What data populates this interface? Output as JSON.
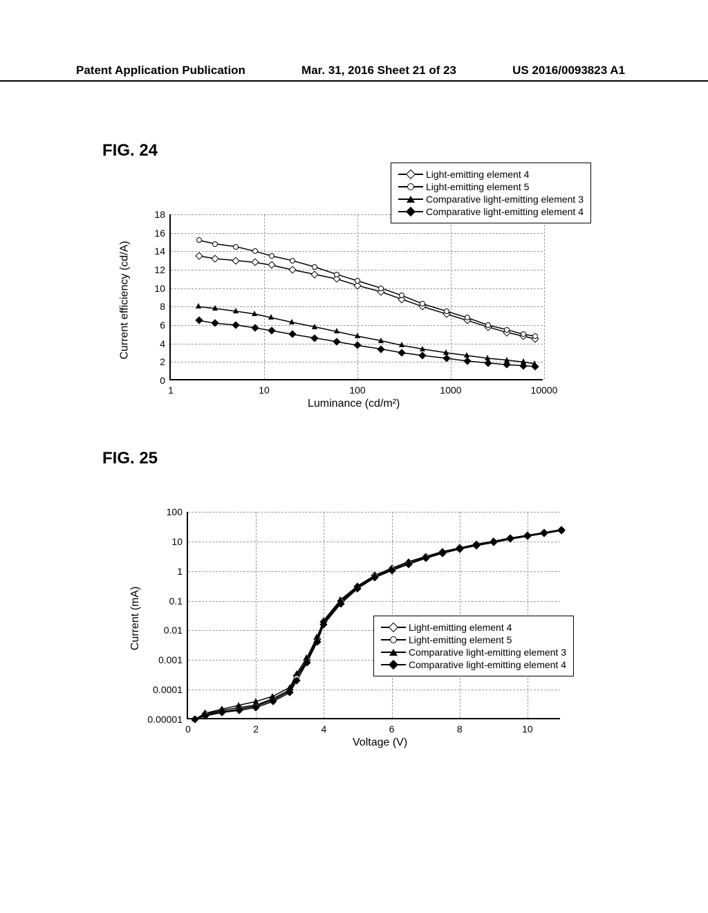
{
  "header": {
    "left": "Patent Application Publication",
    "center": "Mar. 31, 2016  Sheet 21 of 23",
    "right": "US 2016/0093823 A1"
  },
  "fig24": {
    "label": "FIG. 24",
    "type": "line",
    "xlabel": "Luminance (cd/m²)",
    "ylabel": "Current efficiency (cd/A)",
    "xscale": "log",
    "xlim": [
      1,
      10000
    ],
    "xticks": [
      1,
      10,
      100,
      1000,
      10000
    ],
    "ylim": [
      0,
      18
    ],
    "yticks": [
      0,
      2,
      4,
      6,
      8,
      10,
      12,
      14,
      16,
      18
    ],
    "grid_color": "#999999",
    "background_color": "#ffffff",
    "legend_position": "top-right",
    "series": [
      {
        "label": "Light-emitting element 4",
        "marker": "diamond-open",
        "color": "#000000",
        "x": [
          2,
          3,
          5,
          8,
          12,
          20,
          35,
          60,
          100,
          180,
          300,
          500,
          900,
          1500,
          2500,
          4000,
          6000,
          8000
        ],
        "y": [
          13.5,
          13.2,
          13.0,
          12.8,
          12.5,
          12.0,
          11.5,
          11.0,
          10.3,
          9.6,
          8.8,
          8.0,
          7.2,
          6.5,
          5.8,
          5.2,
          4.8,
          4.5
        ]
      },
      {
        "label": "Light-emitting element 5",
        "marker": "circle-open",
        "color": "#000000",
        "x": [
          2,
          3,
          5,
          8,
          12,
          20,
          35,
          60,
          100,
          180,
          300,
          500,
          900,
          1500,
          2500,
          4000,
          6000,
          8000
        ],
        "y": [
          15.2,
          14.8,
          14.5,
          14.0,
          13.5,
          13.0,
          12.3,
          11.5,
          10.8,
          10.0,
          9.2,
          8.3,
          7.5,
          6.8,
          6.0,
          5.5,
          5.0,
          4.8
        ]
      },
      {
        "label": "Comparative light-emitting element 3",
        "marker": "triangle-filled",
        "color": "#000000",
        "x": [
          2,
          3,
          5,
          8,
          12,
          20,
          35,
          60,
          100,
          180,
          300,
          500,
          900,
          1500,
          2500,
          4000,
          6000,
          8000
        ],
        "y": [
          8.0,
          7.8,
          7.5,
          7.2,
          6.8,
          6.3,
          5.8,
          5.3,
          4.8,
          4.3,
          3.8,
          3.4,
          3.0,
          2.7,
          2.4,
          2.2,
          2.0,
          1.8
        ]
      },
      {
        "label": "Comparative light-emitting element 4",
        "marker": "diamond-filled",
        "color": "#000000",
        "x": [
          2,
          3,
          5,
          8,
          12,
          20,
          35,
          60,
          100,
          180,
          300,
          500,
          900,
          1500,
          2500,
          4000,
          6000,
          8000
        ],
        "y": [
          6.5,
          6.2,
          6.0,
          5.7,
          5.4,
          5.0,
          4.6,
          4.2,
          3.8,
          3.4,
          3.0,
          2.7,
          2.4,
          2.1,
          1.9,
          1.7,
          1.6,
          1.5
        ]
      }
    ]
  },
  "fig25": {
    "label": "FIG. 25",
    "type": "line",
    "xlabel": "Voltage (V)",
    "ylabel": "Current (mA)",
    "yscale": "log",
    "xlim": [
      0,
      11
    ],
    "xticks": [
      0,
      2,
      4,
      6,
      8,
      10
    ],
    "ylim": [
      1e-05,
      100
    ],
    "yticks": [
      1e-05,
      0.0001,
      0.001,
      0.01,
      0.1,
      1,
      10,
      100
    ],
    "ytick_labels": [
      "0.00001",
      "0.0001",
      "0.001",
      "0.01",
      "0.1",
      "1",
      "10",
      "100"
    ],
    "grid_color": "#999999",
    "background_color": "#ffffff",
    "legend_position": "bottom-right",
    "series": [
      {
        "label": "Light-emitting element 4",
        "marker": "diamond-open",
        "color": "#000000",
        "x": [
          0.2,
          0.5,
          1.0,
          1.5,
          2.0,
          2.5,
          3.0,
          3.2,
          3.5,
          3.8,
          4.0,
          4.5,
          5.0,
          5.5,
          6.0,
          6.5,
          7.0,
          7.5,
          8.0,
          8.5,
          9.0,
          9.5,
          10.0,
          10.5,
          11.0
        ],
        "y": [
          1e-05,
          1.5e-05,
          2e-05,
          2.5e-05,
          3e-05,
          5e-05,
          0.0001,
          0.0003,
          0.001,
          0.005,
          0.02,
          0.1,
          0.3,
          0.7,
          1.2,
          2.0,
          3.0,
          4.5,
          6.0,
          8.0,
          10.0,
          13.0,
          16.0,
          20.0,
          25.0
        ]
      },
      {
        "label": "Light-emitting element 5",
        "marker": "circle-open",
        "color": "#000000",
        "x": [
          0.2,
          0.5,
          1.0,
          1.5,
          2.0,
          2.5,
          3.0,
          3.2,
          3.5,
          3.8,
          4.0,
          4.5,
          5.0,
          5.5,
          6.0,
          6.5,
          7.0,
          7.5,
          8.0,
          8.5,
          9.0,
          9.5,
          10.0,
          10.5,
          11.0
        ],
        "y": [
          1e-05,
          1.4e-05,
          1.8e-05,
          2.2e-05,
          2.8e-05,
          4.5e-05,
          9e-05,
          0.00025,
          0.0009,
          0.0045,
          0.018,
          0.09,
          0.28,
          0.65,
          1.1,
          1.8,
          2.8,
          4.2,
          5.7,
          7.5,
          9.5,
          12.5,
          15.5,
          19.0,
          24.0
        ]
      },
      {
        "label": "Comparative light-emitting element 3",
        "marker": "triangle-filled",
        "color": "#000000",
        "x": [
          0.2,
          0.5,
          1.0,
          1.5,
          2.0,
          2.5,
          3.0,
          3.2,
          3.5,
          3.8,
          4.0,
          4.5,
          5.0,
          5.5,
          6.0,
          6.5,
          7.0,
          7.5,
          8.0,
          8.5,
          9.0,
          9.5,
          10.0,
          10.5,
          11.0
        ],
        "y": [
          1e-05,
          1.6e-05,
          2.2e-05,
          3e-05,
          4e-05,
          6e-05,
          0.00012,
          0.00035,
          0.0012,
          0.006,
          0.022,
          0.11,
          0.32,
          0.72,
          1.25,
          2.1,
          3.1,
          4.6,
          6.1,
          8.1,
          10.2,
          13.2,
          16.2,
          20.2,
          25.2
        ]
      },
      {
        "label": "Comparative light-emitting element 4",
        "marker": "diamond-filled",
        "color": "#000000",
        "x": [
          0.2,
          0.5,
          1.0,
          1.5,
          2.0,
          2.5,
          3.0,
          3.2,
          3.5,
          3.8,
          4.0,
          4.5,
          5.0,
          5.5,
          6.0,
          6.5,
          7.0,
          7.5,
          8.0,
          8.5,
          9.0,
          9.5,
          10.0,
          10.5,
          11.0
        ],
        "y": [
          1e-05,
          1.3e-05,
          1.7e-05,
          2e-05,
          2.5e-05,
          4e-05,
          8e-05,
          0.0002,
          0.0008,
          0.004,
          0.016,
          0.08,
          0.26,
          0.6,
          1.05,
          1.7,
          2.7,
          4.0,
          5.5,
          7.3,
          9.2,
          12.0,
          15.0,
          18.5,
          23.5
        ]
      }
    ]
  }
}
